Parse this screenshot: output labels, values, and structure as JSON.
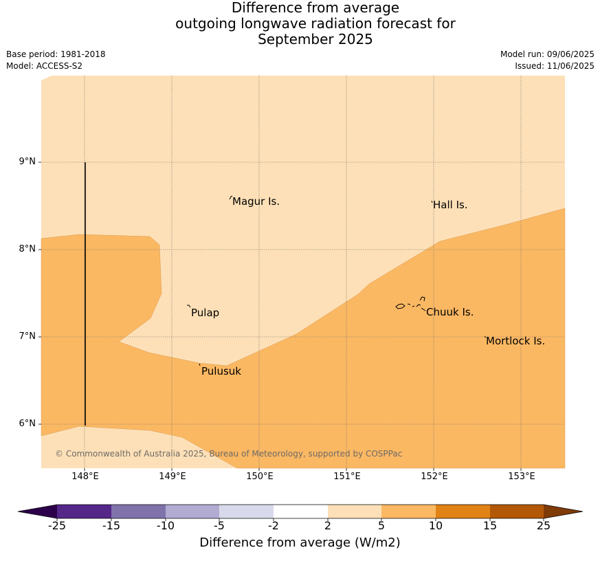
{
  "title": {
    "line1": "Difference from average",
    "line2": "outgoing longwave radiation forecast for",
    "line3": "September 2025"
  },
  "meta": {
    "base_period": "Base period: 1981-2018",
    "model": "Model: ACCESS-S2",
    "model_run": "Model run: 09/06/2025",
    "issued": "Issued: 11/06/2025"
  },
  "map": {
    "lat_ticks": [
      "9°N",
      "8°N",
      "7°N",
      "6°N"
    ],
    "lon_ticks": [
      "148°E",
      "149°E",
      "150°E",
      "151°E",
      "152°E",
      "153°E"
    ],
    "places": {
      "magur": "Magur Is.",
      "hall": "Hall Is.",
      "pulap": "Pulap",
      "chuuk": "Chuuk Is.",
      "mortlock": "Mortlock Is.",
      "pulusuk": "Pulusuk"
    },
    "copyright": "© Commonwealth of Australia 2025, Bureau of Meteorology, supported by COSPPac",
    "fill_colors": {
      "2_to_5": "#fde0b7",
      "5_to_10": "#fbb863"
    }
  },
  "colorbar": {
    "title": "Difference from average (W/m2)",
    "labels": [
      "-25",
      "-15",
      "-10",
      "-5",
      "-2",
      "2",
      "5",
      "10",
      "15",
      "25"
    ],
    "colors": {
      "below_-25": "#2d004b",
      "-25_to_-15": "#542788",
      "-15_to_-10": "#8073ac",
      "-10_to_-5": "#b2abd2",
      "-5_to_-2": "#d8daeb",
      "-2_to_2": "#ffffff",
      "2_to_5": "#fde0b7",
      "5_to_10": "#fbb863",
      "10_to_15": "#e08214",
      "15_to_25": "#b35806",
      "above_25": "#7f3b08"
    }
  }
}
